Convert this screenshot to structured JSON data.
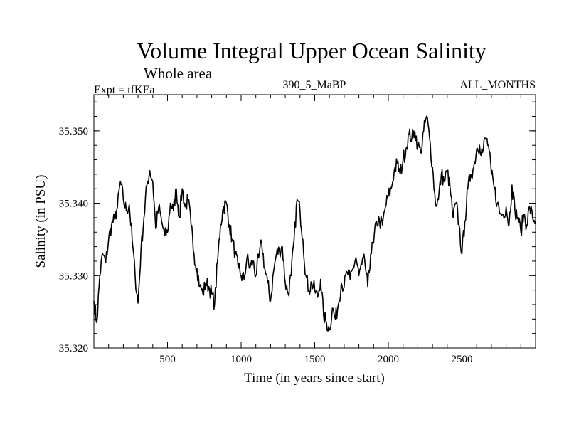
{
  "chart_data": {
    "type": "line",
    "title": "Volume Integral Upper Ocean Salinity",
    "subtitle": "Whole area",
    "left_label": "Expt = tfKEa",
    "center_label": "390_5_MaBP",
    "right_label": "ALL_MONTHS",
    "xlabel": "Time (in years since start)",
    "ylabel": "Salinity (in PSU)",
    "xlim": [
      0,
      3000
    ],
    "ylim": [
      35.32,
      35.355
    ],
    "x_ticks": [
      500,
      1000,
      1500,
      2000,
      2500
    ],
    "x_tick_labels": [
      "500",
      "1000",
      "1500",
      "2000",
      "2500"
    ],
    "y_ticks": [
      35.32,
      35.33,
      35.34,
      35.35
    ],
    "y_tick_labels": [
      "35.320",
      "35.330",
      "35.340",
      "35.350"
    ],
    "grid": false,
    "series": [
      {
        "color": "#000000",
        "x": [
          0,
          20,
          40,
          60,
          80,
          100,
          120,
          140,
          160,
          180,
          200,
          220,
          240,
          260,
          280,
          300,
          320,
          340,
          360,
          380,
          400,
          420,
          440,
          460,
          480,
          500,
          520,
          540,
          560,
          580,
          600,
          620,
          640,
          660,
          680,
          700,
          720,
          740,
          760,
          780,
          800,
          820,
          840,
          860,
          880,
          900,
          920,
          940,
          960,
          980,
          1000,
          1020,
          1040,
          1060,
          1080,
          1100,
          1120,
          1140,
          1160,
          1180,
          1200,
          1220,
          1240,
          1260,
          1280,
          1300,
          1320,
          1340,
          1360,
          1380,
          1400,
          1420,
          1440,
          1460,
          1480,
          1500,
          1520,
          1540,
          1560,
          1580,
          1600,
          1620,
          1640,
          1660,
          1680,
          1700,
          1720,
          1740,
          1760,
          1780,
          1800,
          1820,
          1840,
          1860,
          1880,
          1900,
          1920,
          1940,
          1960,
          1980,
          2000,
          2020,
          2040,
          2060,
          2080,
          2100,
          2120,
          2140,
          2160,
          2180,
          2200,
          2220,
          2240,
          2260,
          2280,
          2300,
          2320,
          2340,
          2360,
          2380,
          2400,
          2420,
          2440,
          2460,
          2480,
          2500,
          2520,
          2540,
          2560,
          2580,
          2600,
          2620,
          2640,
          2660,
          2680,
          2700,
          2720,
          2740,
          2760,
          2780,
          2800,
          2820,
          2840,
          2860,
          2880,
          2900,
          2920,
          2940,
          2960,
          2980,
          3000
        ],
        "y": [
          35.3265,
          35.3235,
          35.33,
          35.333,
          35.3318,
          35.335,
          35.337,
          35.3378,
          35.3395,
          35.343,
          35.3405,
          35.339,
          35.3398,
          35.335,
          35.33,
          35.3262,
          35.3335,
          35.338,
          35.3425,
          35.3445,
          35.343,
          35.3365,
          35.3395,
          35.3375,
          35.3355,
          35.336,
          35.34,
          35.339,
          35.342,
          35.338,
          35.342,
          35.3395,
          35.3405,
          35.337,
          35.333,
          35.331,
          35.3285,
          35.3275,
          35.329,
          35.3285,
          35.3275,
          35.326,
          35.332,
          35.337,
          35.3395,
          35.34,
          35.337,
          35.335,
          35.333,
          35.331,
          35.33,
          35.3295,
          35.3325,
          35.331,
          35.332,
          35.33,
          35.3325,
          35.3345,
          35.331,
          35.329,
          35.3265,
          35.3305,
          35.333,
          35.3335,
          35.334,
          35.329,
          35.3275,
          35.33,
          35.335,
          35.3405,
          35.339,
          35.335,
          35.33,
          35.328,
          35.329,
          35.328,
          35.327,
          35.3295,
          35.3245,
          35.3235,
          35.3225,
          35.3255,
          35.324,
          35.326,
          35.329,
          35.3285,
          35.3305,
          35.3295,
          35.331,
          35.3325,
          35.33,
          35.3315,
          35.332,
          35.3285,
          35.333,
          35.3345,
          35.3375,
          35.3375,
          35.337,
          35.3395,
          35.341,
          35.342,
          35.3445,
          35.3455,
          35.344,
          35.346,
          35.3475,
          35.3495,
          35.349,
          35.35,
          35.348,
          35.347,
          35.35,
          35.352,
          35.349,
          35.345,
          35.34,
          35.3405,
          35.344,
          35.343,
          35.3445,
          35.342,
          35.338,
          35.34,
          35.337,
          35.333,
          35.3375,
          35.342,
          35.344,
          35.345,
          35.3475,
          35.348,
          35.347,
          35.349,
          35.348,
          35.344,
          35.342,
          35.34,
          35.3385,
          35.3385,
          35.3395,
          35.337,
          35.3425,
          35.339,
          35.338,
          35.336,
          35.3385,
          35.337,
          35.3395,
          35.338,
          35.3375
        ]
      }
    ]
  }
}
